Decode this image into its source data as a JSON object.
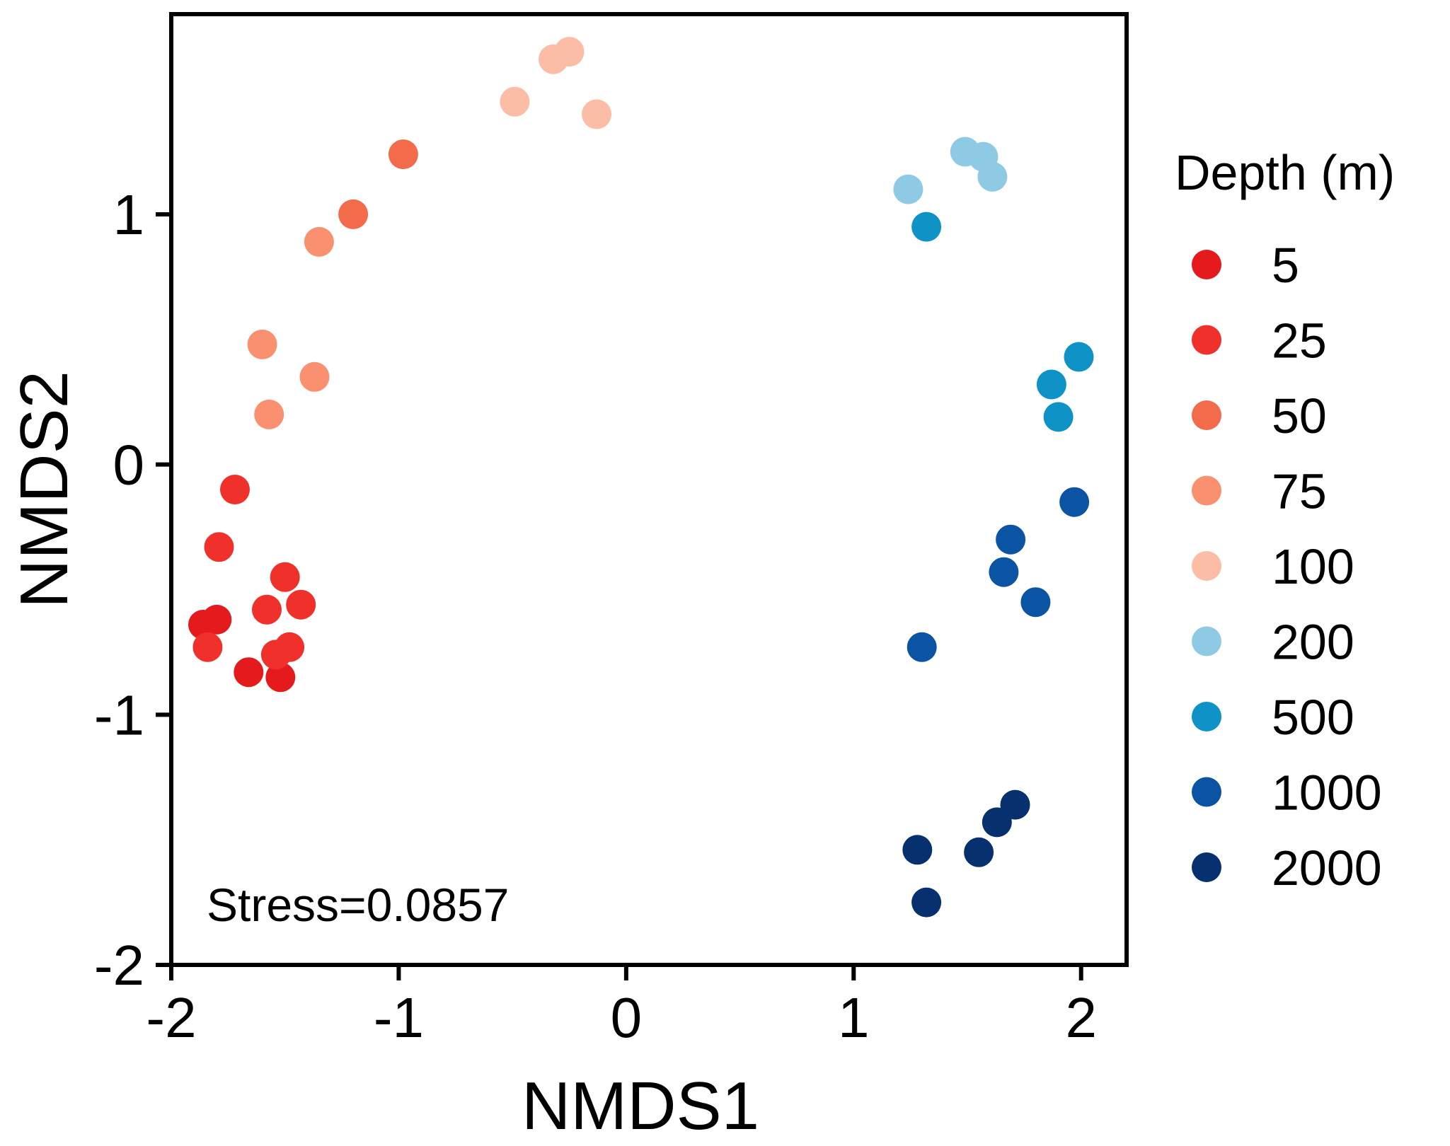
{
  "chart_data": {
    "type": "scatter",
    "title": "",
    "xlabel": "NMDS1",
    "ylabel": "NMDS2",
    "xlim": [
      -2,
      2.2
    ],
    "ylim": [
      -2,
      1.8
    ],
    "xticks": [
      -2,
      -1,
      0,
      1,
      2
    ],
    "yticks": [
      -2,
      -1,
      0,
      1
    ],
    "xtick_labels": [
      "-2",
      "-1",
      "0",
      "1",
      "2"
    ],
    "ytick_labels": [
      "-2",
      "-1",
      "0",
      "1"
    ],
    "grid": false,
    "legend_title": "Depth (m)",
    "legend_position": "right",
    "annotation": "Stress=0.0857",
    "series": [
      {
        "name": "5",
        "color": "#e41a1c",
        "points": [
          [
            -1.86,
            -0.64
          ],
          [
            -1.8,
            -0.62
          ],
          [
            -1.66,
            -0.83
          ],
          [
            -1.52,
            -0.85
          ]
        ]
      },
      {
        "name": "25",
        "color": "#f0302a",
        "points": [
          [
            -1.72,
            -0.1
          ],
          [
            -1.79,
            -0.33
          ],
          [
            -1.5,
            -0.45
          ],
          [
            -1.43,
            -0.56
          ],
          [
            -1.58,
            -0.58
          ],
          [
            -1.84,
            -0.73
          ],
          [
            -1.48,
            -0.73
          ],
          [
            -1.54,
            -0.76
          ]
        ]
      },
      {
        "name": "50",
        "color": "#f26b4b",
        "points": [
          [
            -0.98,
            1.24
          ],
          [
            -1.2,
            1.0
          ]
        ]
      },
      {
        "name": "75",
        "color": "#f9906f",
        "points": [
          [
            -1.35,
            0.89
          ],
          [
            -1.6,
            0.48
          ],
          [
            -1.37,
            0.35
          ],
          [
            -1.57,
            0.2
          ]
        ]
      },
      {
        "name": "100",
        "color": "#fbbda5",
        "points": [
          [
            -0.49,
            1.45
          ],
          [
            -0.32,
            1.62
          ],
          [
            -0.25,
            1.65
          ],
          [
            -0.13,
            1.4
          ]
        ]
      },
      {
        "name": "200",
        "color": "#8fcae4",
        "points": [
          [
            1.24,
            1.1
          ],
          [
            1.49,
            1.25
          ],
          [
            1.57,
            1.23
          ],
          [
            1.61,
            1.15
          ]
        ]
      },
      {
        "name": "500",
        "color": "#0f92c6",
        "points": [
          [
            1.32,
            0.95
          ],
          [
            1.99,
            0.43
          ],
          [
            1.87,
            0.32
          ],
          [
            1.9,
            0.19
          ]
        ]
      },
      {
        "name": "1000",
        "color": "#0a54a3",
        "points": [
          [
            1.97,
            -0.15
          ],
          [
            1.69,
            -0.3
          ],
          [
            1.66,
            -0.43
          ],
          [
            1.8,
            -0.55
          ],
          [
            1.3,
            -0.73
          ]
        ]
      },
      {
        "name": "2000",
        "color": "#07306f",
        "points": [
          [
            1.71,
            -1.36
          ],
          [
            1.63,
            -1.43
          ],
          [
            1.28,
            -1.54
          ],
          [
            1.55,
            -1.55
          ],
          [
            1.32,
            -1.75
          ]
        ]
      }
    ]
  }
}
